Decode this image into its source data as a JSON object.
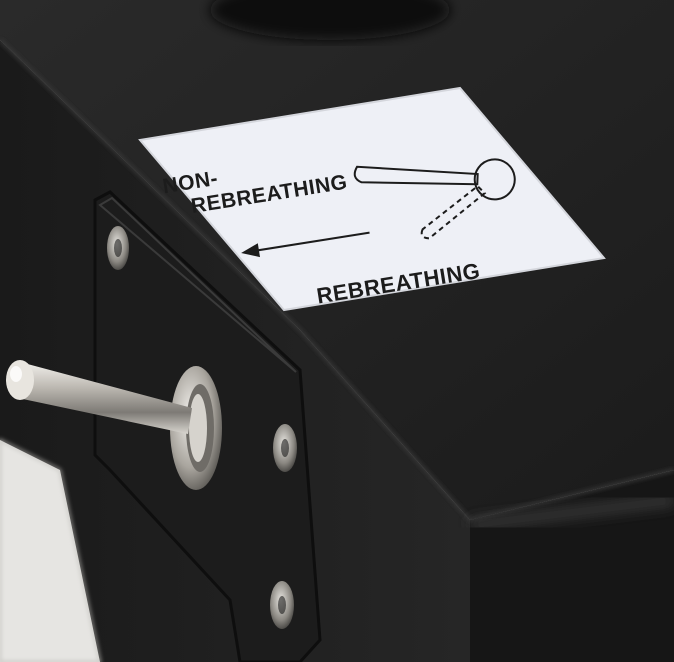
{
  "label": {
    "line1": "NON-",
    "line2": "REBREATHING",
    "bottom": "REBREATHING"
  },
  "colors": {
    "housing": "#232323",
    "housing_edge": "#121212",
    "backdrop": "#e9e8e6",
    "label_face": "#eef0f6",
    "toggle_metal": "#c9c6c0"
  },
  "icons": {
    "arrow": "left-arrow-icon",
    "toggle_diagram": "toggle-lever-diagram-icon"
  }
}
